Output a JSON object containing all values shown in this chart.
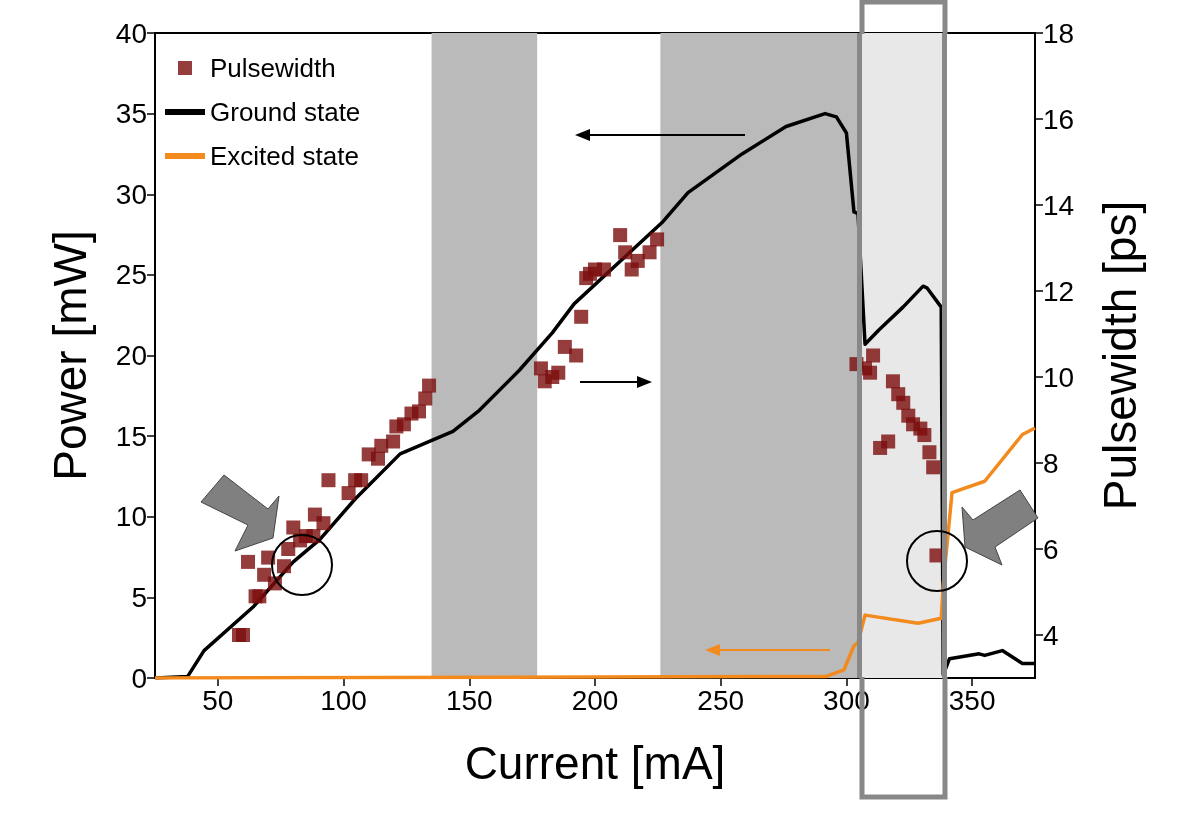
{
  "chart_data": {
    "type": "line",
    "xlabel": "Current [mA]",
    "ylabel": "Power [mW]",
    "y2label": "Pulsewidth [ps]",
    "xlim": [
      25,
      375
    ],
    "xticks": [
      50,
      100,
      150,
      200,
      250,
      300,
      350
    ],
    "ylim": [
      0,
      40
    ],
    "yticks": [
      0,
      5,
      10,
      15,
      20,
      25,
      30,
      35,
      40
    ],
    "y2lim": [
      3,
      18
    ],
    "y2ticks": [
      4,
      6,
      8,
      10,
      12,
      14,
      16,
      18
    ],
    "grid": false,
    "legend": "top left",
    "line_style": "solid",
    "bands": [
      {
        "axis": "x",
        "from": 135,
        "to": 177,
        "color": "#bababa"
      },
      {
        "axis": "x",
        "from": 226,
        "to": 305,
        "color": "#bababa"
      },
      {
        "axis": "x",
        "from": 305,
        "to": 339,
        "color": "#e8e8e8"
      }
    ],
    "ref_lines": [
      {
        "axis": "x",
        "value": 305,
        "color": "#888888"
      },
      {
        "axis": "x",
        "value": 339,
        "color": "#888888"
      }
    ],
    "series": [
      {
        "name": "Pulsewidth",
        "type": "scatter",
        "axis": "y2",
        "marker": "square",
        "color": "#7b0c0c",
        "x": [
          58.4,
          60,
          62,
          65,
          66.5,
          68.4,
          70,
          72.7,
          76.3,
          78,
          80,
          82.7,
          85,
          88,
          88.6,
          92,
          94,
          102,
          104.6,
          107,
          110,
          113.7,
          115,
          119.7,
          121,
          124,
          127,
          130,
          132.5,
          134,
          178.5,
          180,
          183,
          185.4,
          188,
          192.5,
          194.5,
          196.5,
          198,
          200,
          203.6,
          210,
          212,
          214.6,
          217,
          221.7,
          224.7,
          304,
          307.4,
          309.4,
          310.6,
          313.4,
          316.6,
          318.5,
          320.6,
          322.6,
          324.6,
          326.5,
          329.4,
          331,
          333,
          334.5,
          335.8
        ],
        "values": [
          4.0,
          4.0,
          5.7,
          4.9,
          4.9,
          5.4,
          5.8,
          5.2,
          5.6,
          6.0,
          6.5,
          6.2,
          6.3,
          6.3,
          6.8,
          6.6,
          7.6,
          7.3,
          7.6,
          7.6,
          8.2,
          8.1,
          8.4,
          8.5,
          8.85,
          8.9,
          9.15,
          9.2,
          9.5,
          9.8,
          10.2,
          9.9,
          10.0,
          10.1,
          10.7,
          10.5,
          11.4,
          12.3,
          12.4,
          12.5,
          12.5,
          13.3,
          12.9,
          12.5,
          12.7,
          12.9,
          13.2,
          10.3,
          10.2,
          10.1,
          10.5,
          8.35,
          8.5,
          9.9,
          9.6,
          9.4,
          9.1,
          8.9,
          8.8,
          8.65,
          8.25,
          7.9,
          5.85
        ]
      },
      {
        "name": "Ground state",
        "marker": "none",
        "color": "#000000",
        "x": [
          25,
          38,
          44.5,
          64,
          80,
          90.6,
          104.6,
          122.5,
          143.5,
          154,
          170,
          183,
          191.7,
          227,
          237,
          258.5,
          276,
          291.5,
          296,
          300,
          303,
          304.6,
          307.4,
          313,
          322.5,
          330.5,
          332,
          337.7,
          338.5,
          341,
          352.8,
          355,
          362,
          370,
          375
        ],
        "values": [
          0,
          0.1,
          1.7,
          4.4,
          7.2,
          8.6,
          11.1,
          13.9,
          15.3,
          16.6,
          19.1,
          21.4,
          23.2,
          28.3,
          30.1,
          32.5,
          34.2,
          35.0,
          34.8,
          33.8,
          28.9,
          28.8,
          20.7,
          21.6,
          23.0,
          24.3,
          24.2,
          23.0,
          0.2,
          1.2,
          1.5,
          1.4,
          1.7,
          0.9,
          0.9
        ]
      },
      {
        "name": "Excited state",
        "marker": "none",
        "color": "#f28a1e",
        "x": [
          25,
          292,
          299,
          303,
          304.6,
          307.4,
          328.5,
          337.7,
          338.5,
          342,
          355,
          370,
          375
        ],
        "values": [
          0,
          0.1,
          0.5,
          2.0,
          2.2,
          3.9,
          3.4,
          3.7,
          5.8,
          11.5,
          12.2,
          15.1,
          15.5
        ]
      }
    ]
  }
}
